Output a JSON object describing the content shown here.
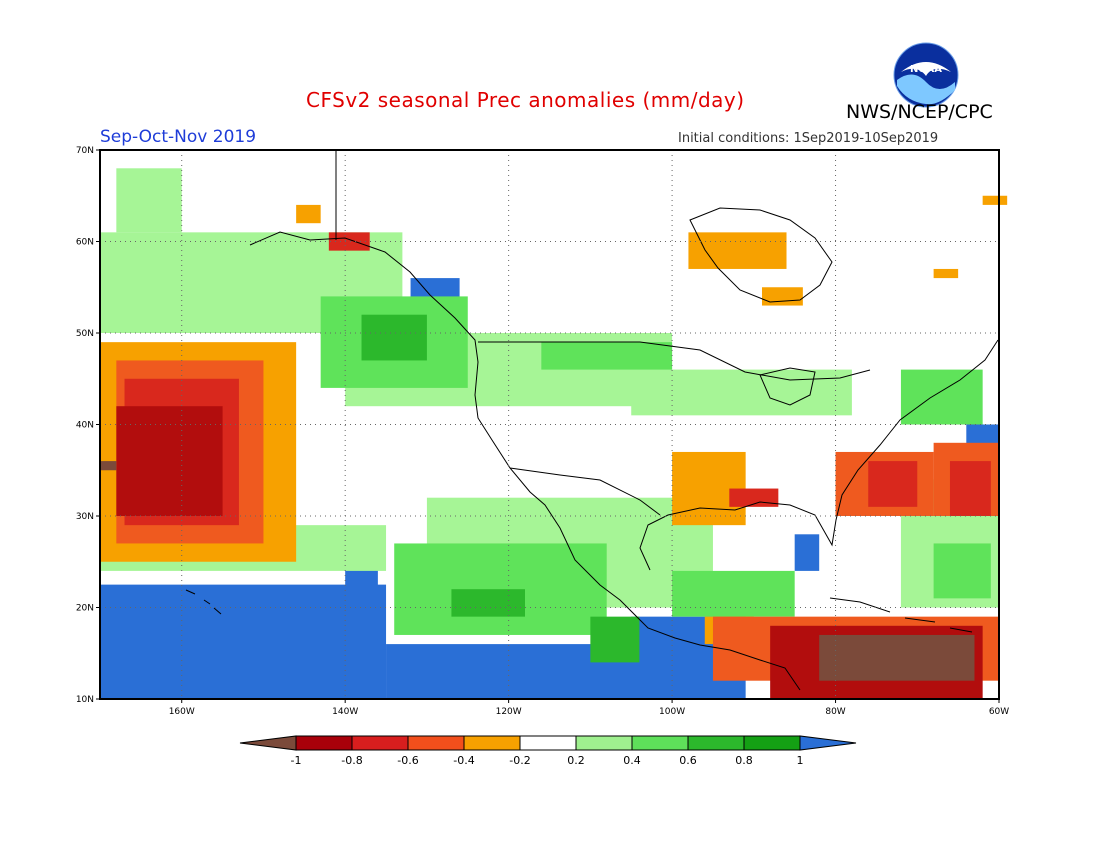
{
  "header": {
    "title": "CFSv2 seasonal Prec anomalies (mm/day)",
    "agency": "NWS/NCEP/CPC",
    "season": "Sep-Oct-Nov 2019",
    "initial_conditions": "Initial conditions: 1Sep2019-10Sep2019",
    "logo_text": "NOAA"
  },
  "axes": {
    "lat_labels": [
      "70N",
      "60N",
      "50N",
      "40N",
      "30N",
      "20N",
      "10N"
    ],
    "lon_labels": [
      "160W",
      "140W",
      "120W",
      "100W",
      "80W",
      "60W"
    ],
    "lat_range": [
      10,
      70
    ],
    "lon_range": [
      -170,
      -60
    ]
  },
  "colorbar": {
    "labels": [
      "-1",
      "-0.8",
      "-0.6",
      "-0.4",
      "-0.2",
      "0.2",
      "0.4",
      "0.6",
      "0.8",
      "1"
    ],
    "colors": [
      "#7b4a3a",
      "#a8000a",
      "#d81e1e",
      "#f24f1c",
      "#f7a100",
      "#ffffff",
      "#9ff08f",
      "#5ee05a",
      "#2cb82c",
      "#14a014",
      "#2a6fd6"
    ]
  },
  "palette": {
    "brown": "#7b4a3a",
    "darkred": "#b20d0d",
    "red": "#d9281d",
    "orangered": "#ef5a1f",
    "orange": "#f7a100",
    "lightgreen": "#a6f596",
    "green": "#5fe35a",
    "darkgreen": "#2cb82c",
    "deepgreen": "#169a16",
    "blue": "#2a6fd6"
  },
  "anomaly_regions": [
    {
      "color": "blue",
      "lon": [
        -170,
        -135
      ],
      "lat": [
        10,
        22.5
      ]
    },
    {
      "color": "blue",
      "lon": [
        -135,
        -95
      ],
      "lat": [
        10,
        16
      ]
    },
    {
      "color": "blue",
      "lon": [
        -105,
        -91
      ],
      "lat": [
        10,
        19
      ]
    },
    {
      "color": "blue",
      "lon": [
        -140,
        -136
      ],
      "lat": [
        16.5,
        25.5
      ]
    },
    {
      "color": "blue",
      "lon": [
        -132,
        -126
      ],
      "lat": [
        52,
        56
      ]
    },
    {
      "color": "blue",
      "lon": [
        -64,
        -60
      ],
      "lat": [
        37,
        40
      ]
    },
    {
      "color": "blue",
      "lon": [
        -85,
        -82
      ],
      "lat": [
        24,
        28
      ]
    },
    {
      "color": "lightgreen",
      "lon": [
        -170,
        -133
      ],
      "lat": [
        50,
        61
      ]
    },
    {
      "color": "lightgreen",
      "lon": [
        -140,
        -100
      ],
      "lat": [
        42,
        50
      ]
    },
    {
      "color": "lightgreen",
      "lon": [
        -130,
        -95
      ],
      "lat": [
        20,
        32
      ]
    },
    {
      "color": "lightgreen",
      "lon": [
        -170,
        -135
      ],
      "lat": [
        24,
        29
      ]
    },
    {
      "color": "lightgreen",
      "lon": [
        -105,
        -78
      ],
      "lat": [
        41,
        46
      ]
    },
    {
      "color": "lightgreen",
      "lon": [
        -72,
        -60
      ],
      "lat": [
        20,
        34
      ]
    },
    {
      "color": "lightgreen",
      "lon": [
        -168,
        -160
      ],
      "lat": [
        61,
        68
      ]
    },
    {
      "color": "green",
      "lon": [
        -143,
        -125
      ],
      "lat": [
        44,
        54
      ]
    },
    {
      "color": "green",
      "lon": [
        -134,
        -108
      ],
      "lat": [
        17,
        27
      ]
    },
    {
      "color": "green",
      "lon": [
        -116,
        -100
      ],
      "lat": [
        46,
        49
      ]
    },
    {
      "color": "green",
      "lon": [
        -68,
        -61
      ],
      "lat": [
        21,
        27
      ]
    },
    {
      "color": "green",
      "lon": [
        -72,
        -62
      ],
      "lat": [
        40,
        46
      ]
    },
    {
      "color": "green",
      "lon": [
        -100,
        -85
      ],
      "lat": [
        19,
        24
      ]
    },
    {
      "color": "darkgreen",
      "lon": [
        -138,
        -130
      ],
      "lat": [
        47,
        52
      ]
    },
    {
      "color": "darkgreen",
      "lon": [
        -127,
        -118
      ],
      "lat": [
        19,
        22
      ]
    },
    {
      "color": "darkgreen",
      "lon": [
        -110,
        -104
      ],
      "lat": [
        14,
        19
      ]
    },
    {
      "color": "orange",
      "lon": [
        -170,
        -146
      ],
      "lat": [
        25,
        49
      ]
    },
    {
      "color": "orange",
      "lon": [
        -100,
        -91
      ],
      "lat": [
        29,
        37
      ]
    },
    {
      "color": "orange",
      "lon": [
        -98,
        -86
      ],
      "lat": [
        57,
        61
      ]
    },
    {
      "color": "orange",
      "lon": [
        -89,
        -84
      ],
      "lat": [
        53,
        55
      ]
    },
    {
      "color": "orange",
      "lon": [
        -146,
        -143
      ],
      "lat": [
        62,
        64
      ]
    },
    {
      "color": "orange",
      "lon": [
        -68,
        -65
      ],
      "lat": [
        56,
        57
      ]
    },
    {
      "color": "orange",
      "lon": [
        -62,
        -59
      ],
      "lat": [
        64,
        65
      ]
    },
    {
      "color": "orange",
      "lon": [
        -96,
        -90
      ],
      "lat": [
        16,
        19
      ]
    },
    {
      "color": "orangered",
      "lon": [
        -168,
        -150
      ],
      "lat": [
        27,
        47
      ]
    },
    {
      "color": "orangered",
      "lon": [
        -80,
        -68
      ],
      "lat": [
        30,
        37
      ]
    },
    {
      "color": "orangered",
      "lon": [
        -68,
        -60
      ],
      "lat": [
        30,
        38
      ]
    },
    {
      "color": "orangered",
      "lon": [
        -95,
        -60
      ],
      "lat": [
        12,
        19
      ]
    },
    {
      "color": "red",
      "lon": [
        -167,
        -153
      ],
      "lat": [
        29,
        45
      ]
    },
    {
      "color": "red",
      "lon": [
        -76,
        -70
      ],
      "lat": [
        31,
        36
      ]
    },
    {
      "color": "red",
      "lon": [
        -66,
        -61
      ],
      "lat": [
        30,
        36
      ]
    },
    {
      "color": "red",
      "lon": [
        -93,
        -87
      ],
      "lat": [
        31,
        33
      ]
    },
    {
      "color": "red",
      "lon": [
        -142,
        -137
      ],
      "lat": [
        59,
        61
      ]
    },
    {
      "color": "darkred",
      "lon": [
        -168,
        -155
      ],
      "lat": [
        30,
        42
      ]
    },
    {
      "color": "darkred",
      "lon": [
        -88,
        -62
      ],
      "lat": [
        10,
        18
      ]
    },
    {
      "color": "brown",
      "lon": [
        -82,
        -63
      ],
      "lat": [
        12,
        17
      ]
    },
    {
      "color": "brown",
      "lon": [
        -170,
        -168
      ],
      "lat": [
        35,
        36
      ]
    }
  ]
}
